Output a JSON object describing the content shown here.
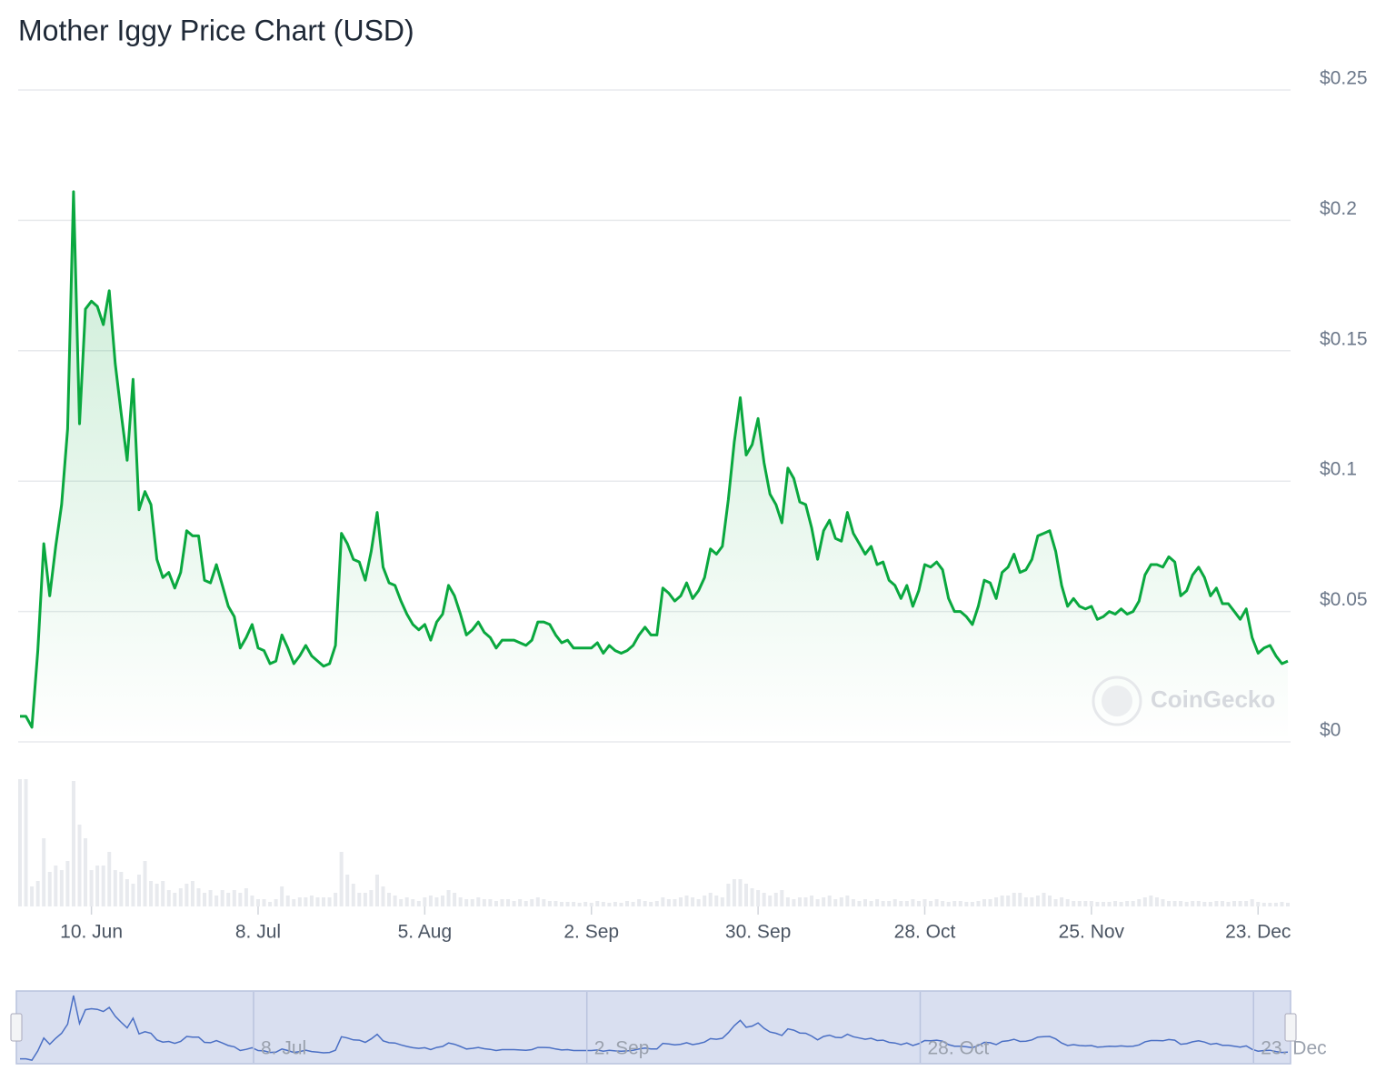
{
  "chart_data": {
    "type": "line",
    "title": "Mother Iggy Price Chart (USD)",
    "x": [
      "29. May",
      "30. May",
      "31. May",
      "1. Jun",
      "2. Jun",
      "3. Jun",
      "4. Jun",
      "5. Jun",
      "6. Jun",
      "7. Jun",
      "8. Jun",
      "9. Jun",
      "10. Jun",
      "11. Jun",
      "12. Jun",
      "13. Jun",
      "14. Jun",
      "15. Jun",
      "16. Jun",
      "17. Jun",
      "18. Jun",
      "19. Jun",
      "20. Jun",
      "21. Jun",
      "22. Jun",
      "23. Jun",
      "24. Jun",
      "25. Jun",
      "26. Jun",
      "27. Jun",
      "28. Jun",
      "29. Jun",
      "30. Jun",
      "1. Jul",
      "2. Jul",
      "3. Jul",
      "4. Jul",
      "5. Jul",
      "6. Jul",
      "7. Jul",
      "8. Jul",
      "9. Jul",
      "10. Jul",
      "11. Jul",
      "12. Jul",
      "13. Jul",
      "14. Jul",
      "15. Jul",
      "16. Jul",
      "17. Jul",
      "18. Jul",
      "19. Jul",
      "20. Jul",
      "21. Jul",
      "22. Jul",
      "23. Jul",
      "24. Jul",
      "25. Jul",
      "26. Jul",
      "27. Jul",
      "28. Jul",
      "29. Jul",
      "30. Jul",
      "31. Jul",
      "1. Aug",
      "2. Aug",
      "3. Aug",
      "4. Aug",
      "5. Aug",
      "6. Aug",
      "7. Aug",
      "8. Aug",
      "9. Aug",
      "10. Aug",
      "11. Aug",
      "12. Aug",
      "13. Aug",
      "14. Aug",
      "15. Aug",
      "16. Aug",
      "17. Aug",
      "18. Aug",
      "19. Aug",
      "20. Aug",
      "21. Aug",
      "22. Aug",
      "23. Aug",
      "24. Aug",
      "25. Aug",
      "26. Aug",
      "27. Aug",
      "28. Aug",
      "29. Aug",
      "30. Aug",
      "31. Aug",
      "1. Sep",
      "2. Sep",
      "3. Sep",
      "4. Sep",
      "5. Sep",
      "6. Sep",
      "7. Sep",
      "8. Sep",
      "9. Sep",
      "10. Sep",
      "11. Sep",
      "12. Sep",
      "13. Sep",
      "14. Sep",
      "15. Sep",
      "16. Sep",
      "17. Sep",
      "18. Sep",
      "19. Sep",
      "20. Sep",
      "21. Sep",
      "22. Sep",
      "23. Sep",
      "24. Sep",
      "25. Sep",
      "26. Sep",
      "27. Sep",
      "28. Sep",
      "29. Sep",
      "30. Sep",
      "1. Oct",
      "2. Oct",
      "3. Oct",
      "4. Oct",
      "5. Oct",
      "6. Oct",
      "7. Oct",
      "8. Oct",
      "9. Oct",
      "10. Oct",
      "11. Oct",
      "12. Oct",
      "13. Oct",
      "14. Oct",
      "15. Oct",
      "16. Oct",
      "17. Oct",
      "18. Oct",
      "19. Oct",
      "20. Oct",
      "21. Oct",
      "22. Oct",
      "23. Oct",
      "24. Oct",
      "25. Oct",
      "26. Oct",
      "27. Oct",
      "28. Oct",
      "29. Oct",
      "30. Oct",
      "31. Oct",
      "1. Nov",
      "2. Nov",
      "3. Nov",
      "4. Nov",
      "5. Nov",
      "6. Nov",
      "7. Nov",
      "8. Nov",
      "9. Nov",
      "10. Nov",
      "11. Nov",
      "12. Nov",
      "13. Nov",
      "14. Nov",
      "15. Nov",
      "16. Nov",
      "17. Nov",
      "18. Nov",
      "19. Nov",
      "20. Nov",
      "21. Nov",
      "22. Nov",
      "23. Nov",
      "24. Nov",
      "25. Nov",
      "26. Nov",
      "27. Nov",
      "28. Nov",
      "29. Nov",
      "30. Nov",
      "1. Dec",
      "2. Dec",
      "3. Dec",
      "4. Dec",
      "5. Dec",
      "6. Dec",
      "7. Dec",
      "8. Dec",
      "9. Dec",
      "10. Dec",
      "11. Dec",
      "12. Dec",
      "13. Dec",
      "14. Dec",
      "15. Dec",
      "16. Dec",
      "17. Dec",
      "18. Dec",
      "19. Dec",
      "20. Dec",
      "21. Dec",
      "22. Dec",
      "23. Dec",
      "24. Dec",
      "25. Dec",
      "26. Dec",
      "27. Dec",
      "28. Dec"
    ],
    "values": [
      0.0098,
      0.0098,
      0.0056,
      0.035,
      0.076,
      0.056,
      0.075,
      0.091,
      0.12,
      0.211,
      0.122,
      0.166,
      0.169,
      0.167,
      0.16,
      0.173,
      0.145,
      0.126,
      0.108,
      0.139,
      0.089,
      0.096,
      0.091,
      0.07,
      0.063,
      0.065,
      0.059,
      0.065,
      0.081,
      0.079,
      0.079,
      0.062,
      0.061,
      0.068,
      0.06,
      0.052,
      0.048,
      0.036,
      0.04,
      0.045,
      0.036,
      0.035,
      0.03,
      0.031,
      0.041,
      0.036,
      0.03,
      0.033,
      0.037,
      0.033,
      0.031,
      0.029,
      0.03,
      0.037,
      0.08,
      0.076,
      0.07,
      0.069,
      0.062,
      0.073,
      0.088,
      0.067,
      0.061,
      0.06,
      0.054,
      0.049,
      0.045,
      0.043,
      0.045,
      0.039,
      0.046,
      0.049,
      0.06,
      0.056,
      0.049,
      0.041,
      0.043,
      0.046,
      0.042,
      0.04,
      0.036,
      0.039,
      0.039,
      0.039,
      0.038,
      0.037,
      0.039,
      0.046,
      0.046,
      0.045,
      0.041,
      0.038,
      0.039,
      0.036,
      0.036,
      0.036,
      0.036,
      0.038,
      0.034,
      0.037,
      0.035,
      0.034,
      0.035,
      0.037,
      0.041,
      0.044,
      0.041,
      0.041,
      0.059,
      0.057,
      0.054,
      0.056,
      0.061,
      0.055,
      0.058,
      0.063,
      0.074,
      0.072,
      0.075,
      0.093,
      0.115,
      0.132,
      0.11,
      0.114,
      0.124,
      0.107,
      0.095,
      0.091,
      0.084,
      0.105,
      0.101,
      0.092,
      0.091,
      0.082,
      0.07,
      0.081,
      0.085,
      0.078,
      0.077,
      0.088,
      0.08,
      0.076,
      0.072,
      0.075,
      0.068,
      0.069,
      0.062,
      0.06,
      0.055,
      0.06,
      0.052,
      0.058,
      0.068,
      0.067,
      0.069,
      0.066,
      0.055,
      0.05,
      0.05,
      0.048,
      0.045,
      0.052,
      0.062,
      0.061,
      0.055,
      0.065,
      0.067,
      0.072,
      0.065,
      0.066,
      0.07,
      0.079,
      0.08,
      0.081,
      0.073,
      0.06,
      0.052,
      0.055,
      0.052,
      0.051,
      0.052,
      0.047,
      0.048,
      0.05,
      0.049,
      0.051,
      0.049,
      0.05,
      0.054,
      0.064,
      0.068,
      0.068,
      0.067,
      0.071,
      0.069,
      0.056,
      0.058,
      0.064,
      0.067,
      0.063,
      0.056,
      0.059,
      0.053,
      0.053,
      0.05,
      0.047,
      0.051,
      0.04,
      0.034,
      0.036,
      0.037,
      0.033,
      0.03,
      0.031
    ],
    "volumes": [
      140,
      140,
      22,
      28,
      75,
      38,
      45,
      40,
      50,
      138,
      90,
      75,
      40,
      45,
      45,
      60,
      40,
      38,
      30,
      25,
      35,
      50,
      28,
      25,
      28,
      18,
      15,
      20,
      25,
      28,
      20,
      15,
      18,
      12,
      18,
      15,
      18,
      15,
      20,
      12,
      8,
      8,
      5,
      8,
      22,
      12,
      8,
      10,
      10,
      12,
      10,
      10,
      10,
      15,
      60,
      35,
      25,
      15,
      15,
      18,
      35,
      22,
      15,
      12,
      8,
      10,
      8,
      6,
      10,
      12,
      10,
      12,
      18,
      15,
      10,
      8,
      8,
      10,
      8,
      8,
      6,
      8,
      8,
      6,
      8,
      6,
      8,
      10,
      8,
      6,
      6,
      5,
      5,
      5,
      4,
      5,
      4,
      6,
      5,
      4,
      5,
      4,
      6,
      5,
      8,
      6,
      5,
      6,
      10,
      8,
      8,
      10,
      12,
      10,
      8,
      12,
      15,
      12,
      10,
      25,
      30,
      30,
      25,
      20,
      18,
      15,
      12,
      15,
      18,
      10,
      8,
      10,
      10,
      12,
      8,
      10,
      12,
      8,
      10,
      12,
      8,
      6,
      8,
      6,
      8,
      6,
      6,
      8,
      6,
      6,
      8,
      6,
      8,
      6,
      8,
      6,
      5,
      6,
      6,
      5,
      5,
      6,
      8,
      8,
      10,
      12,
      12,
      15,
      15,
      10,
      10,
      12,
      15,
      12,
      8,
      10,
      8,
      6,
      6,
      6,
      6,
      5,
      5,
      5,
      6,
      5,
      6,
      6,
      8,
      10,
      12,
      10,
      8,
      6,
      6,
      6,
      5,
      6,
      6,
      5,
      5,
      6,
      6,
      5,
      6,
      6,
      6,
      8,
      5,
      4,
      4,
      4,
      5,
      4
    ],
    "color": "#0aa83f",
    "volume_color": "#e8eaee",
    "navigator_color": "#4a6fc4",
    "ylim": [
      0,
      0.25
    ],
    "yticks": [
      {
        "value": 0,
        "label": "$0"
      },
      {
        "value": 0.05,
        "label": "$0.05"
      },
      {
        "value": 0.1,
        "label": "$0.1"
      },
      {
        "value": 0.15,
        "label": "$0.15"
      },
      {
        "value": 0.2,
        "label": "$0.2"
      },
      {
        "value": 0.25,
        "label": "$0.25"
      }
    ],
    "xticks": [
      "10. Jun",
      "8. Jul",
      "5. Aug",
      "2. Sep",
      "30. Sep",
      "28. Oct",
      "25. Nov",
      "23. Dec"
    ],
    "grid": true,
    "watermark": "CoinGecko"
  }
}
